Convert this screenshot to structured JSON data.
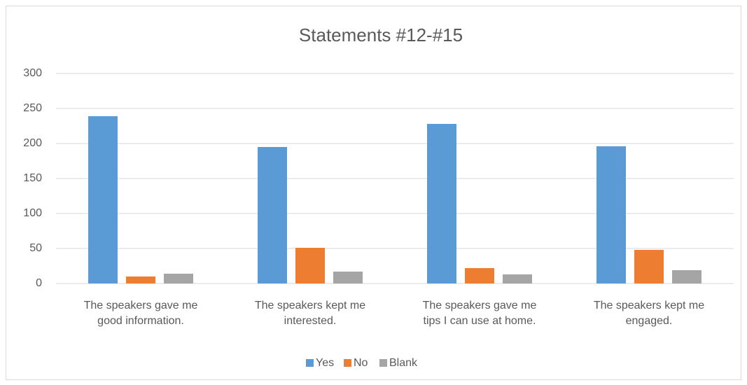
{
  "chart_data": {
    "type": "bar",
    "title": "Statements #12-#15",
    "categories": [
      "The speakers gave me good information.",
      "The speakers kept me interested.",
      "The speakers gave me tips I can use at home.",
      "The speakers kept me engaged."
    ],
    "series": [
      {
        "name": "Yes",
        "color": "#5b9bd5",
        "values": [
          239,
          195,
          228,
          196
        ]
      },
      {
        "name": "No",
        "color": "#ed7d31",
        "values": [
          10,
          51,
          22,
          48
        ]
      },
      {
        "name": "Blank",
        "color": "#a5a5a5",
        "values": [
          14,
          17,
          13,
          19
        ]
      }
    ],
    "ylim": [
      0,
      300
    ],
    "yticks": [
      0,
      50,
      100,
      150,
      200,
      250,
      300
    ],
    "grid": true,
    "legend": "bottom"
  }
}
